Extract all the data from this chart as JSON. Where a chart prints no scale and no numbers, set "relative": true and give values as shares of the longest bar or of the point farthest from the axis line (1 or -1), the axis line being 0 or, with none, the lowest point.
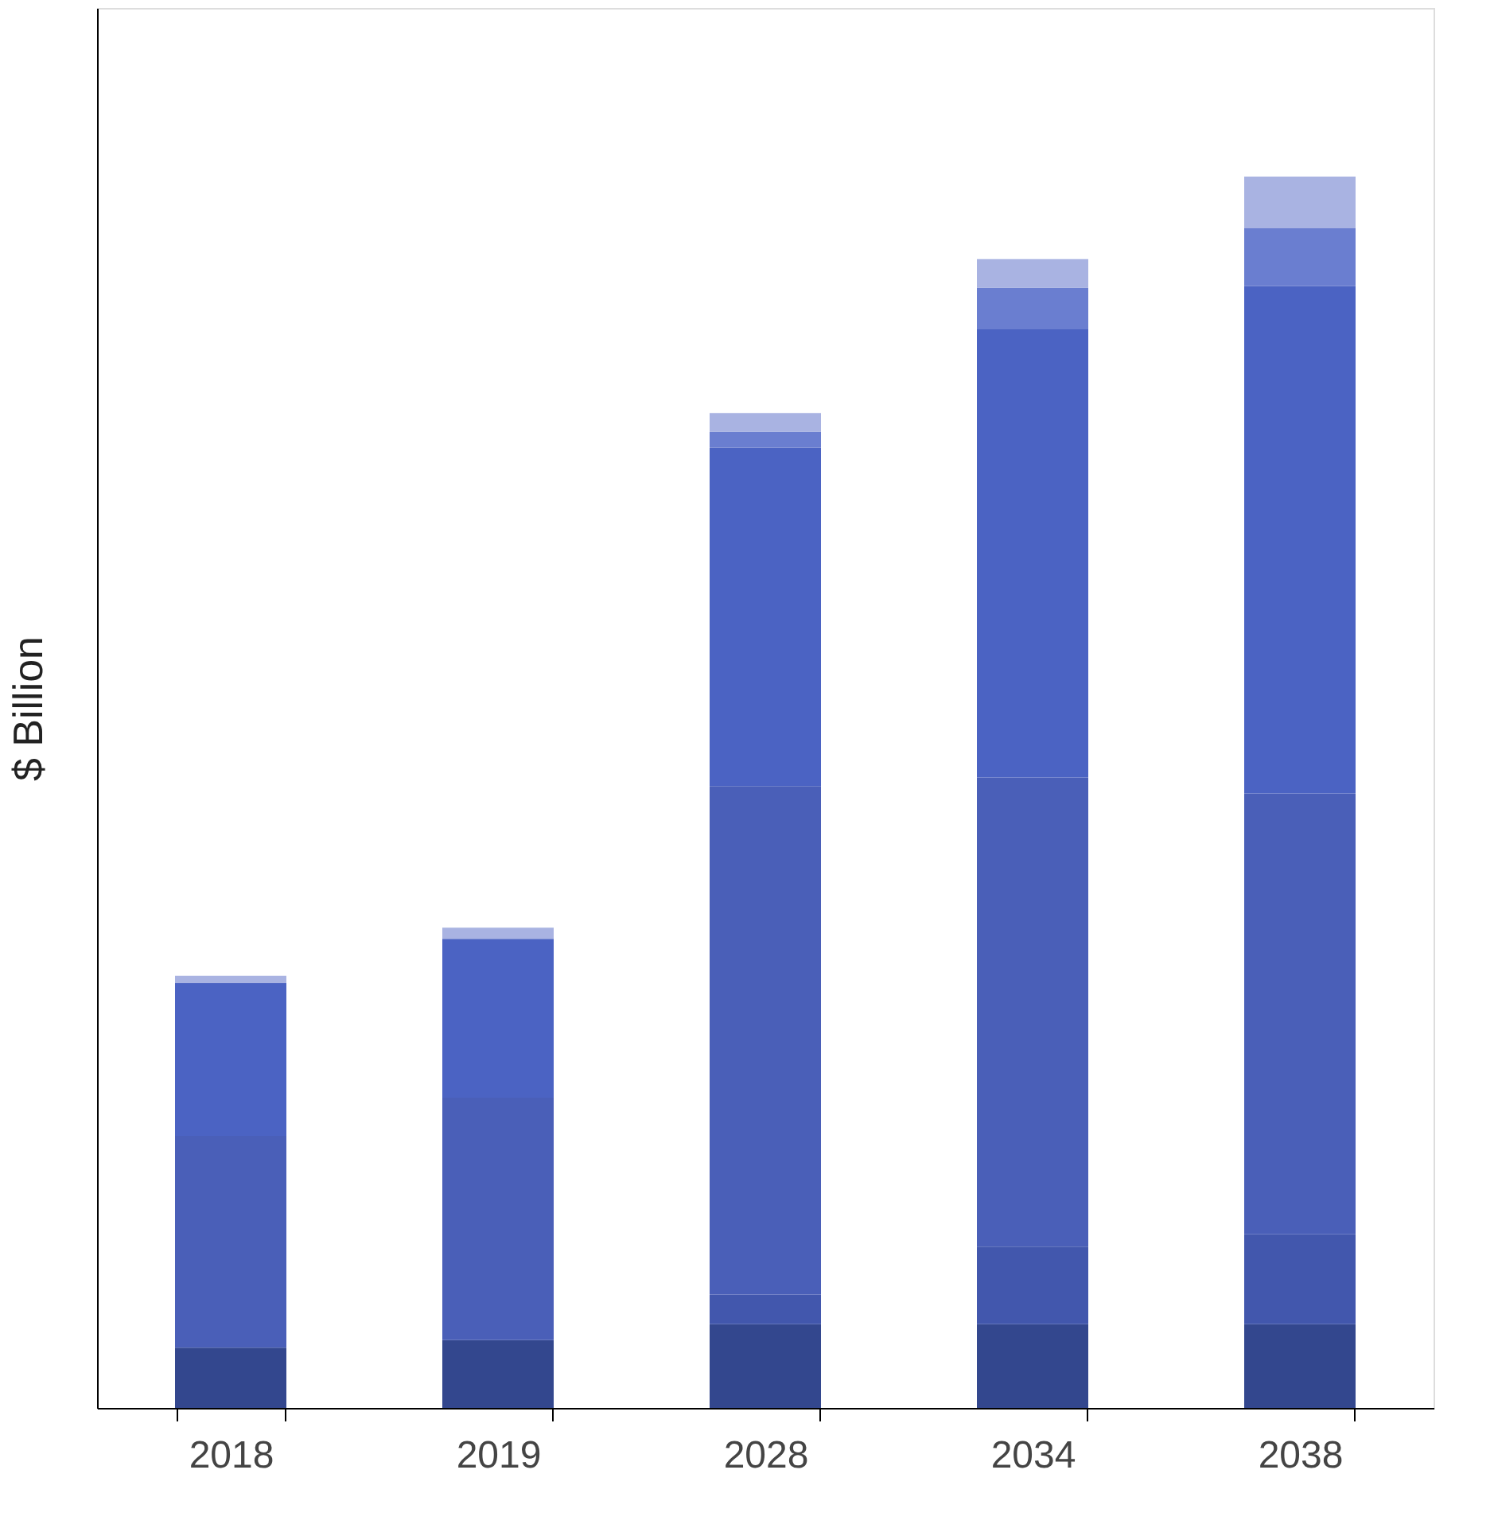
{
  "chart_data": {
    "type": "bar",
    "stacked": true,
    "relative": true,
    "ylabel": "$ Billion",
    "categories": [
      "2018",
      "2019",
      "2028",
      "2034",
      "2038"
    ],
    "legend": false,
    "grid": false,
    "series": [
      {
        "color": "#33478e",
        "values": [
          0.049,
          0.055,
          0.068,
          0.068,
          0.068
        ]
      },
      {
        "color": "#4257ad",
        "values": [
          0,
          0,
          0.024,
          0.063,
          0.073
        ]
      },
      {
        "color": "#4a5fb8",
        "values": [
          0.172,
          0.197,
          0.413,
          0.381,
          0.358
        ]
      },
      {
        "color": "#4b63c3",
        "values": [
          0.124,
          0.129,
          0.275,
          0.364,
          0.412
        ]
      },
      {
        "color": "#6a7ed0",
        "values": [
          0,
          0,
          0.013,
          0.034,
          0.047
        ]
      },
      {
        "color": "#a9b3e2",
        "values": [
          0.006,
          0.009,
          0.015,
          0.023,
          0.042
        ]
      }
    ]
  }
}
